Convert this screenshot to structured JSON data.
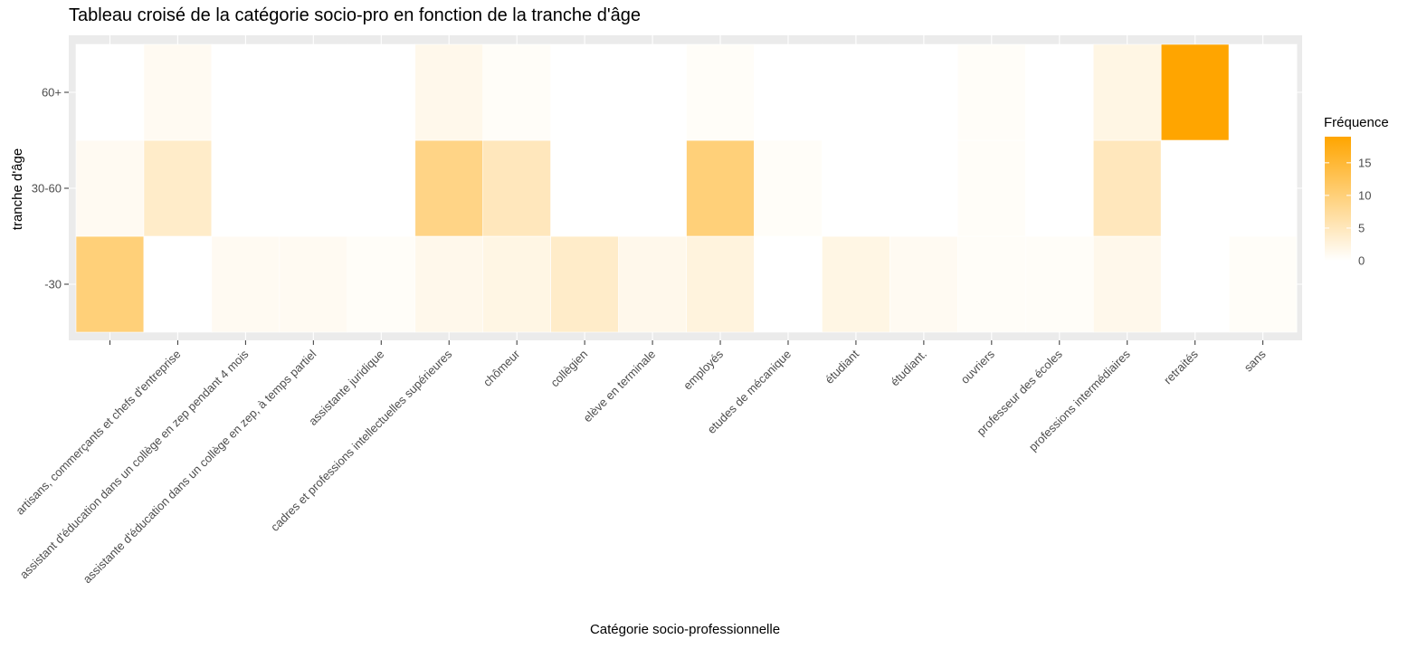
{
  "chart_data": {
    "type": "heatmap",
    "title": "Tableau croisé de la catégorie socio-pro en fonction de la tranche d'âge",
    "xlabel": "Catégorie socio-professionnelle",
    "ylabel": "tranche d'âge",
    "x_categories": [
      "",
      "artisans, commerçants et chefs d'entreprise",
      "assistant d'éducation dans un collège en zep pendant 4 mois",
      "assistante d'éducation dans un collège en zep, à temps partiel",
      "assistante juridique",
      "cadres et professions intellectuelles supérieures",
      "chômeur",
      "collègien",
      "elève en terminale",
      "employés",
      "etudes de mécanique",
      "étudiant",
      "étudiant.",
      "ouvriers",
      "professeur des écoles",
      "professions intermédiaires",
      "retraités",
      "sans"
    ],
    "y_categories": [
      "-30",
      "30-60",
      "60+"
    ],
    "values": [
      [
        10,
        1,
        0
      ],
      [
        0,
        4,
        1
      ],
      [
        1,
        0,
        0
      ],
      [
        1,
        0,
        0
      ],
      [
        0.5,
        0,
        0
      ],
      [
        1.5,
        9,
        1.5
      ],
      [
        2,
        5,
        0.5
      ],
      [
        4,
        0,
        0
      ],
      [
        1.5,
        0,
        0
      ],
      [
        2.5,
        10,
        0.5
      ],
      [
        0,
        0.5,
        0
      ],
      [
        2,
        0,
        0
      ],
      [
        1,
        0,
        0
      ],
      [
        0.5,
        0.5,
        0.5
      ],
      [
        0.5,
        0,
        0
      ],
      [
        1.5,
        5,
        2
      ],
      [
        0,
        0,
        19
      ],
      [
        0.5,
        0,
        0
      ]
    ],
    "legend": {
      "title": "Fréquence",
      "ticks": [
        0,
        5,
        10,
        15
      ],
      "range": [
        0,
        19
      ],
      "low_color": "#ffffff",
      "high_color": "#ffa500",
      "placement": "right"
    },
    "panel_background": "#ebebeb",
    "grid": true
  }
}
